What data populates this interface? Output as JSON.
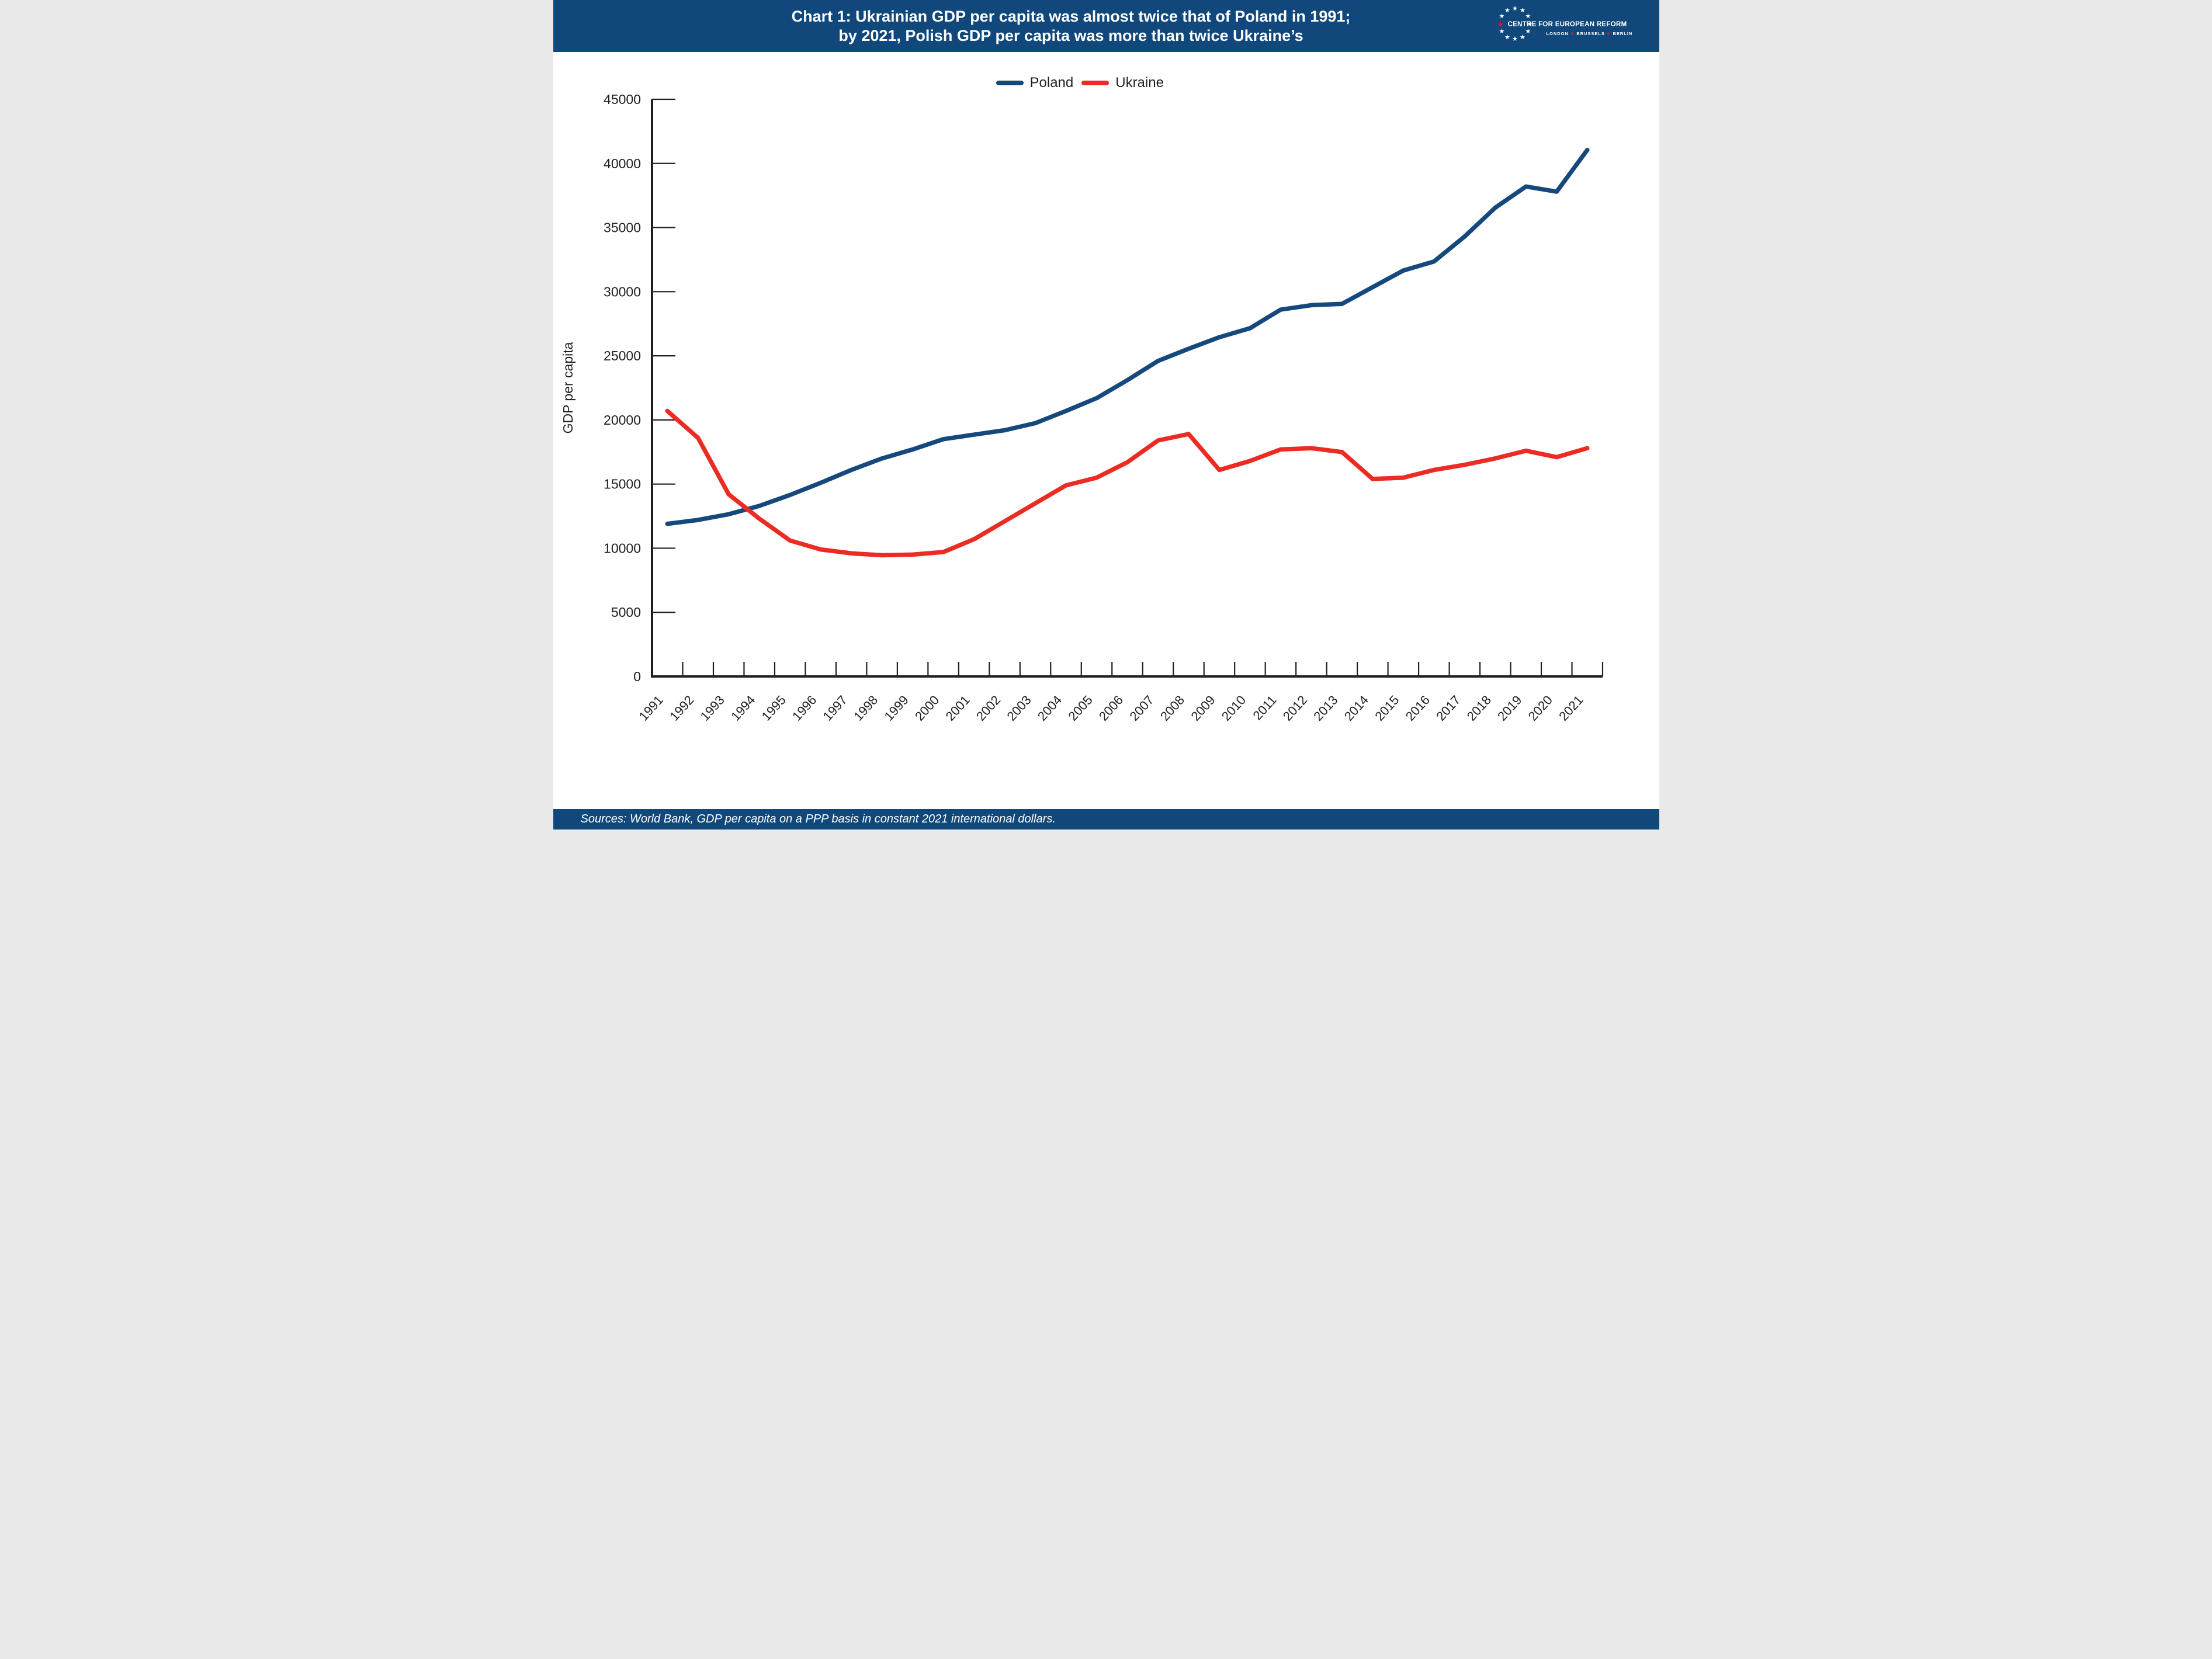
{
  "header": {
    "title_line1": "Chart 1: Ukrainian GDP per capita was almost twice that of Poland in 1991;",
    "title_line2": "by 2021, Polish GDP per capita was more than twice Ukraine’s"
  },
  "logo": {
    "name_line": "CENTRE FOR EUROPEAN REFORM",
    "tagline_parts": [
      "LONDON",
      "BRUSSELS",
      "BERLIN"
    ],
    "star_count": 12,
    "star_color": "#FFFFFF",
    "accent_star_color": "#E8112D"
  },
  "legend": {
    "items": [
      {
        "label": "Poland",
        "color": "#15497D"
      },
      {
        "label": "Ukraine",
        "color": "#EC2B23"
      }
    ]
  },
  "chart_data": {
    "type": "line",
    "title": "",
    "xlabel": "",
    "ylabel": "GDP per capita",
    "ylim": [
      0,
      45000
    ],
    "ytick_step": 5000,
    "grid": false,
    "legend_position": "top-center",
    "categories": [
      "1991",
      "1992",
      "1993",
      "1994",
      "1995",
      "1996",
      "1997",
      "1998",
      "1999",
      "2000",
      "2001",
      "2002",
      "2003",
      "2004",
      "2005",
      "2006",
      "2007",
      "2008",
      "2009",
      "2010",
      "2011",
      "2012",
      "2013",
      "2014",
      "2015",
      "2016",
      "2017",
      "2018",
      "2019",
      "2020",
      "2021"
    ],
    "series": [
      {
        "name": "Poland",
        "color": "#15497D",
        "values": [
          11900,
          12200,
          12650,
          13300,
          14150,
          15100,
          16100,
          17000,
          17700,
          18500,
          18850,
          19200,
          19750,
          20700,
          21700,
          23100,
          24600,
          25550,
          26450,
          27150,
          28600,
          28950,
          29050,
          30350,
          31650,
          32350,
          34300,
          36550,
          38200,
          37800,
          41050
        ]
      },
      {
        "name": "Ukraine",
        "color": "#EC2B23",
        "values": [
          20700,
          18600,
          14200,
          12300,
          10600,
          9900,
          9600,
          9450,
          9500,
          9700,
          10700,
          12100,
          13500,
          14900,
          15500,
          16700,
          18400,
          18900,
          16100,
          16800,
          17700,
          17800,
          17500,
          15400,
          15500,
          16100,
          16500,
          17000,
          17600,
          17100,
          17800
        ]
      }
    ]
  },
  "footer": {
    "sources": "Sources: World Bank, GDP per capita on a PPP basis in constant 2021 international dollars."
  },
  "colors": {
    "band_blue": "#11487C",
    "axis_text": "#231F20",
    "background": "#FFFFFF"
  }
}
